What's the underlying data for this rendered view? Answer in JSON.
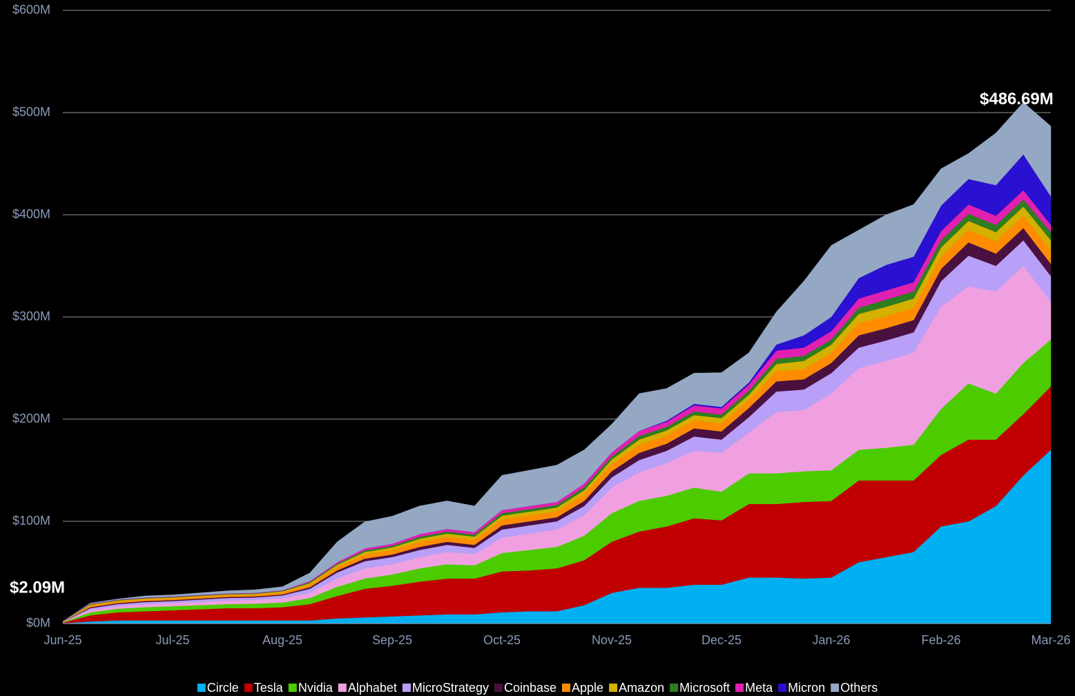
{
  "chart_data": {
    "type": "stacked_area",
    "annotations": [
      "$2.09M",
      "$486.69M"
    ],
    "categories": [
      "Jun-25",
      null,
      null,
      null,
      "Jul-25",
      null,
      null,
      null,
      "Aug-25",
      null,
      null,
      null,
      "Sep-25",
      null,
      null,
      null,
      "Oct-25",
      null,
      null,
      null,
      "Nov-25",
      null,
      null,
      null,
      "Dec-25",
      null,
      null,
      null,
      "Jan-26",
      null,
      null,
      null,
      "Feb-26",
      null,
      null,
      null,
      "Mar-26"
    ],
    "ylim": [
      0,
      600
    ],
    "yticks": [
      {
        "value": 0,
        "label": "$0M"
      },
      {
        "value": 100,
        "label": "$100M"
      },
      {
        "value": 200,
        "label": "$200M"
      },
      {
        "value": 300,
        "label": "$300M"
      },
      {
        "value": 400,
        "label": "$400M"
      },
      {
        "value": 500,
        "label": "$500M"
      },
      {
        "value": 600,
        "label": "$600M"
      }
    ],
    "grid": true,
    "legend": "bottom",
    "series": [
      {
        "name": "Circle",
        "color": "#00b0f0",
        "values": [
          0.3,
          2,
          3,
          3,
          3,
          3,
          3,
          3,
          3,
          3,
          5,
          6,
          7,
          8,
          9,
          9,
          11,
          12,
          12,
          18,
          30,
          35,
          35,
          38,
          38,
          45,
          45,
          44,
          45,
          60,
          65,
          70,
          95,
          100,
          115,
          145,
          170
        ]
      },
      {
        "name": "Tesla",
        "color": "#c00000",
        "values": [
          0.5,
          6,
          8,
          9,
          10,
          11,
          12,
          12,
          13,
          16,
          22,
          28,
          30,
          33,
          35,
          35,
          40,
          40,
          42,
          44,
          50,
          55,
          60,
          65,
          63,
          72,
          72,
          75,
          75,
          80,
          75,
          70,
          70,
          80,
          65,
          60,
          62
        ]
      },
      {
        "name": "Nvidia",
        "color": "#4ccc00",
        "values": [
          0.3,
          3,
          3.5,
          4,
          4,
          4,
          4,
          4.5,
          4.5,
          6,
          9,
          10,
          11,
          13,
          14,
          13,
          18,
          20,
          21,
          24,
          28,
          30,
          30,
          30,
          28,
          30,
          30,
          30,
          30,
          30,
          32,
          35,
          45,
          55,
          45,
          50,
          46
        ]
      },
      {
        "name": "Alphabet",
        "color": "#f0a0e0",
        "values": [
          0.2,
          2,
          2.5,
          3,
          3,
          3,
          3.5,
          3.5,
          4,
          5,
          8,
          10,
          10,
          11,
          12,
          11,
          15,
          16,
          17,
          20,
          25,
          28,
          32,
          36,
          38,
          40,
          60,
          60,
          75,
          80,
          85,
          90,
          100,
          95,
          100,
          95,
          37
        ]
      },
      {
        "name": "MicroStrategy",
        "color": "#b8a0f8",
        "values": [
          0.2,
          2,
          2,
          2,
          2,
          2.5,
          2.5,
          2.5,
          3,
          4,
          6,
          7,
          7,
          7,
          7,
          6,
          8,
          8,
          8,
          9,
          10,
          12,
          12,
          14,
          13,
          15,
          20,
          20,
          20,
          20,
          20,
          20,
          25,
          30,
          25,
          25,
          25
        ]
      },
      {
        "name": "Coinbase",
        "color": "#4a1040",
        "values": [
          0.1,
          1,
          1,
          1,
          1,
          1,
          1,
          1,
          1,
          1.5,
          2,
          2.5,
          2.5,
          3,
          3,
          3,
          4,
          4,
          4,
          5,
          6,
          7,
          7,
          8,
          8,
          9,
          10,
          10,
          10,
          12,
          12,
          12,
          12,
          13,
          12,
          12,
          12
        ]
      },
      {
        "name": "Apple",
        "color": "#ff8c00",
        "values": [
          0.2,
          1.5,
          1.5,
          1.5,
          1.5,
          1.5,
          1.5,
          1.5,
          2,
          2.5,
          3.5,
          4,
          4.5,
          5,
          5,
          5,
          6,
          6,
          6,
          6.5,
          7,
          8,
          8,
          8,
          8,
          8,
          10,
          10,
          10,
          12,
          12,
          12,
          12,
          12,
          12,
          12,
          13
        ]
      },
      {
        "name": "Amazon",
        "color": "#d4b000",
        "values": [
          0.1,
          1,
          1,
          1,
          1,
          1,
          1,
          1,
          1,
          1.5,
          2,
          2.5,
          2.5,
          3,
          3,
          3,
          3.5,
          3.5,
          3.5,
          4,
          4.5,
          5,
          5,
          5,
          5,
          5,
          7,
          8,
          8,
          9,
          9,
          9,
          9,
          9,
          9,
          9,
          10
        ]
      },
      {
        "name": "Microsoft",
        "color": "#2e7d1e",
        "values": [
          0.1,
          0.5,
          0.5,
          0.5,
          0.5,
          0.5,
          0.5,
          0.5,
          0.5,
          1,
          1,
          1.5,
          1.5,
          2,
          2,
          2,
          2.5,
          2.5,
          2.5,
          3,
          3,
          3.5,
          3.5,
          3.5,
          3.5,
          4,
          5,
          5,
          5,
          6,
          7,
          7,
          7,
          7,
          7,
          7,
          8
        ]
      },
      {
        "name": "Meta",
        "color": "#e020b0",
        "values": [
          0.05,
          0.5,
          0.5,
          0.5,
          0.5,
          0.5,
          0.5,
          0.5,
          0.5,
          1,
          1.5,
          2,
          2,
          2.5,
          2.5,
          2.5,
          3,
          3,
          3,
          3.5,
          4,
          5,
          5,
          6,
          6,
          6,
          8,
          8,
          8,
          9,
          9,
          9,
          9,
          9,
          9,
          9,
          7
        ]
      },
      {
        "name": "Micron",
        "color": "#2a10d0",
        "values": [
          0,
          0,
          0,
          0,
          0,
          0,
          0,
          0,
          0,
          0,
          0,
          0,
          0,
          0,
          0,
          0,
          0,
          0,
          0,
          0,
          0,
          0,
          1,
          1.5,
          1.5,
          2,
          6,
          12,
          14,
          20,
          25,
          25,
          25,
          25,
          30,
          35,
          28
        ]
      },
      {
        "name": "Others",
        "color": "#94a8c4",
        "values": [
          0.04,
          0.5,
          0.5,
          1.5,
          1.5,
          2,
          2.5,
          3,
          3.5,
          8,
          20,
          26,
          27,
          27.5,
          27.5,
          25.5,
          34,
          35,
          36,
          33,
          27.5,
          36.5,
          31.5,
          30,
          33.5,
          29,
          32,
          53,
          70,
          47,
          49,
          51,
          36,
          25,
          51,
          51,
          68.69
        ]
      }
    ]
  }
}
